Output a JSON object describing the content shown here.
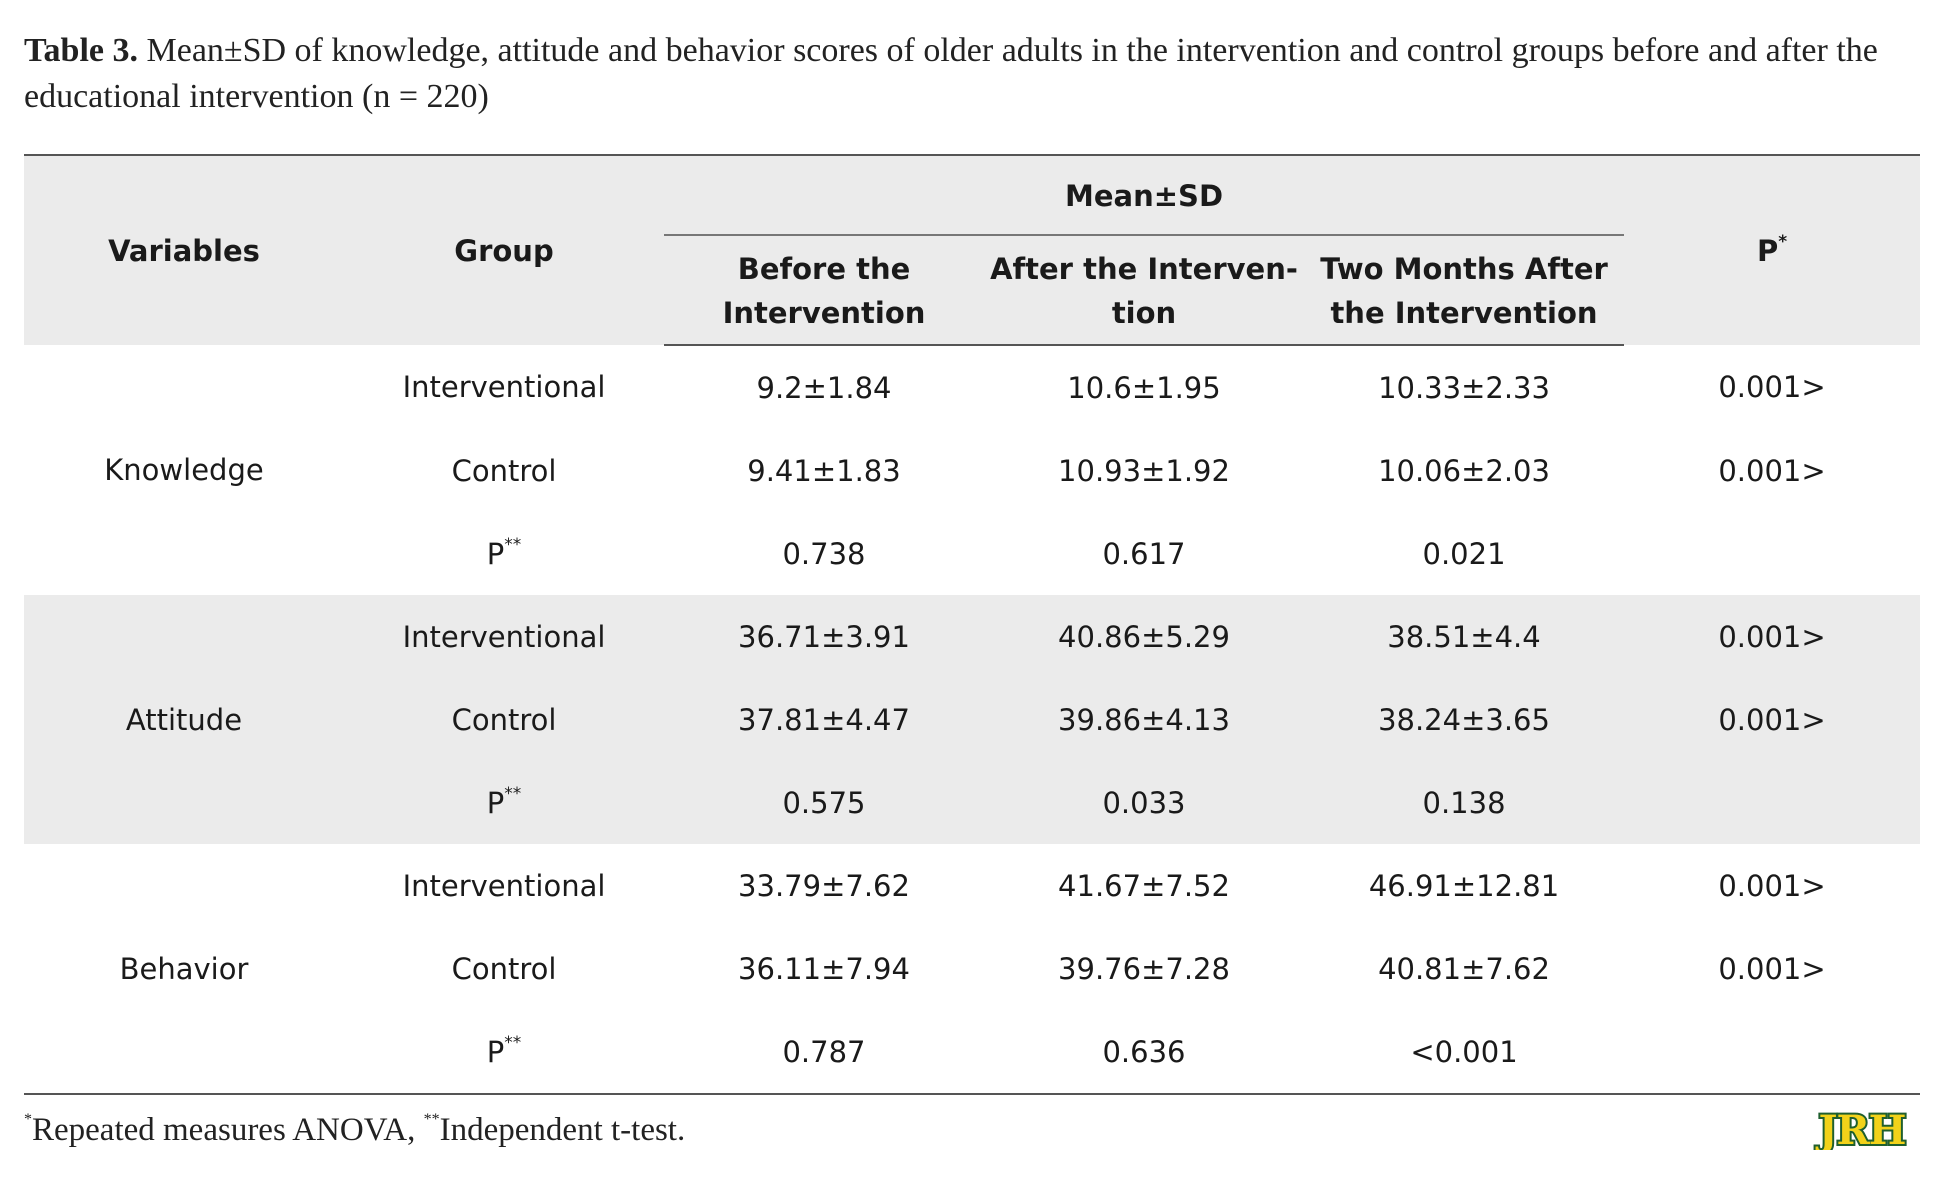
{
  "caption": {
    "label": "Table 3.",
    "text": "Mean±SD of knowledge, attitude and behavior scores of older adults in the intervention and control groups before and after the educational intervention (n = 220)"
  },
  "table": {
    "header": {
      "variables": "Variables",
      "group": "Group",
      "mean_sd": "Mean±SD",
      "before": "Before the Intervention",
      "after": "After the Interven-tion",
      "two_months": "Two Months After the Intervention",
      "p": "P",
      "p_sup": "*"
    },
    "blocks": [
      {
        "variable": "Knowledge",
        "rows": [
          {
            "group": "Interventional",
            "before": "9.2±1.84",
            "after": "10.6±1.95",
            "two_months": "10.33±2.33",
            "p": "0.001>"
          },
          {
            "group": "Control",
            "before": "9.41±1.83",
            "after": "10.93±1.92",
            "two_months": "10.06±2.03",
            "p": "0.001>"
          },
          {
            "group": "P",
            "group_sup": "**",
            "before": "0.738",
            "after": "0.617",
            "two_months": "0.021",
            "p": ""
          }
        ]
      },
      {
        "variable": "Attitude",
        "rows": [
          {
            "group": "Interventional",
            "before": "36.71±3.91",
            "after": "40.86±5.29",
            "two_months": "38.51±4.4",
            "p": "0.001>"
          },
          {
            "group": "Control",
            "before": "37.81±4.47",
            "after": "39.86±4.13",
            "two_months": "38.24±3.65",
            "p": "0.001>"
          },
          {
            "group": "P",
            "group_sup": "**",
            "before": "0.575",
            "after": "0.033",
            "two_months": "0.138",
            "p": ""
          }
        ]
      },
      {
        "variable": "Behavior",
        "rows": [
          {
            "group": "Interventional",
            "before": "33.79±7.62",
            "after": "41.67±7.52",
            "two_months": "46.91±12.81",
            "p": "0.001>"
          },
          {
            "group": "Control",
            "before": "36.11±7.94",
            "after": "39.76±7.28",
            "two_months": "40.81±7.62",
            "p": "0.001>"
          },
          {
            "group": "P",
            "group_sup": "**",
            "before": "0.787",
            "after": "0.636",
            "two_months": "<0.001",
            "p": ""
          }
        ]
      }
    ]
  },
  "footnote": {
    "sup1": "*",
    "text1": "Repeated measures ANOVA, ",
    "sup2": "**",
    "text2": "Independent t-test."
  },
  "logo": {
    "text": "JRH",
    "color": "#f2d21a",
    "outline_color": "#1f5f2e"
  }
}
